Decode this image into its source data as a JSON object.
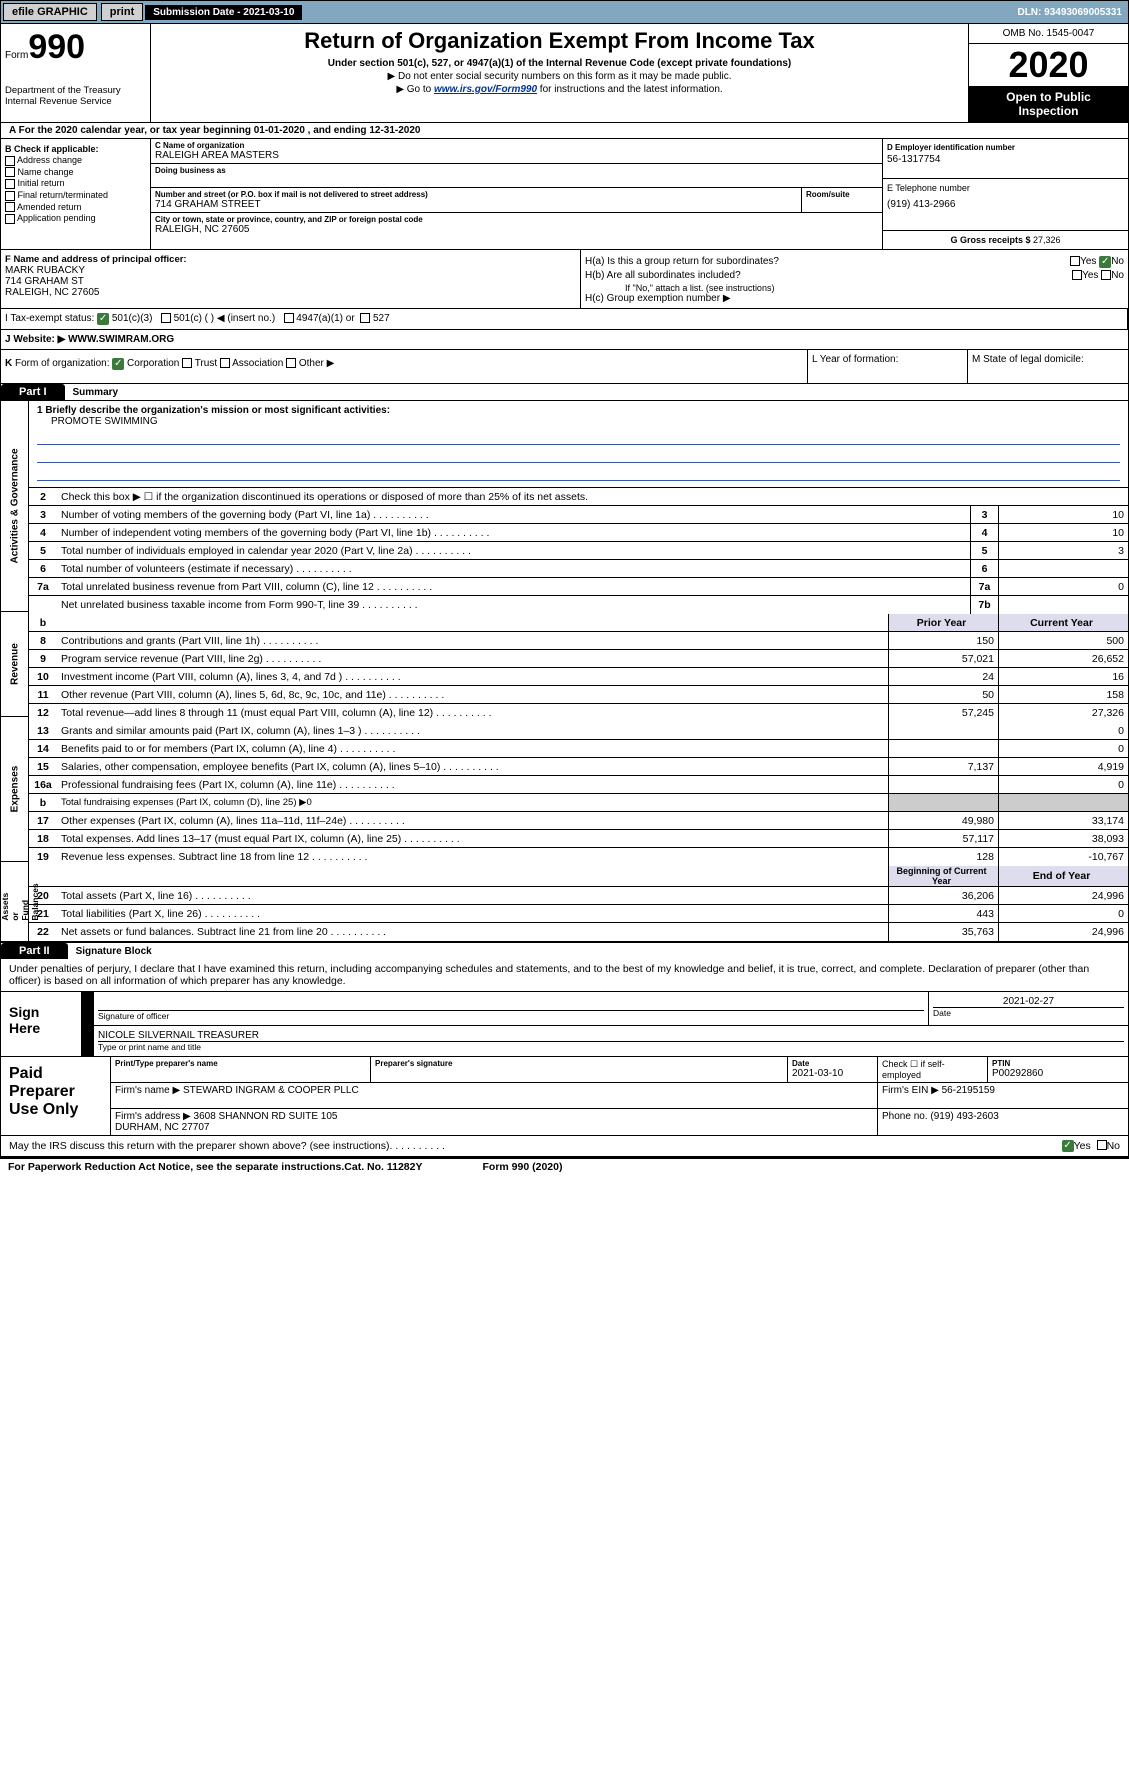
{
  "top": {
    "efile": "efile GRAPHIC",
    "print": "print",
    "subdate_lbl": "Submission Date - 2021-03-10",
    "dln": "DLN: 93493069005331"
  },
  "header": {
    "form": "Form",
    "num": "990",
    "dept": "Department of the Treasury\nInternal Revenue Service",
    "title": "Return of Organization Exempt From Income Tax",
    "sub": "Under section 501(c), 527, or 4947(a)(1) of the Internal Revenue Code (except private foundations)",
    "l1": "▶ Do not enter social security numbers on this form as it may be made public.",
    "l2a": "▶ Go to ",
    "l2link": "www.irs.gov/Form990",
    "l2b": " for instructions and the latest information.",
    "omb": "OMB No. 1545-0047",
    "year": "2020",
    "open": "Open to Public\nInspection"
  },
  "rowA": "A For the 2020 calendar year, or tax year beginning 01-01-2020    , and ending 12-31-2020",
  "colB": {
    "hdr": "B Check if applicable:",
    "items": [
      "Address change",
      "Name change",
      "Initial return",
      "Final return/terminated",
      "Amended return",
      "Application pending"
    ]
  },
  "colC": {
    "name_lbl": "C Name of organization",
    "name": "RALEIGH AREA MASTERS",
    "dba_lbl": "Doing business as",
    "addr_lbl": "Number and street (or P.O. box if mail is not delivered to street address)",
    "addr": "714 GRAHAM STREET",
    "room_lbl": "Room/suite",
    "city_lbl": "City or town, state or province, country, and ZIP or foreign postal code",
    "city": "RALEIGH, NC  27605"
  },
  "colD": {
    "lbl": "D Employer identification number",
    "val": "56-1317754"
  },
  "colE": {
    "lbl": "E Telephone number",
    "val": "(919) 413-2966"
  },
  "colG": {
    "lbl": "G Gross receipts $ ",
    "val": "27,326"
  },
  "colF": {
    "lbl": "F  Name and address of principal officer:",
    "l1": "MARK RUBACKY",
    "l2": "714 GRAHAM ST",
    "l3": "RALEIGH, NC  27605"
  },
  "colH": {
    "ha": "H(a)  Is this a group return for subordinates?",
    "hb": "H(b)  Are all subordinates included?",
    "hbnote": "If \"No,\" attach a list. (see instructions)",
    "hc": "H(c)  Group exemption number ▶",
    "yes": "Yes",
    "no": "No"
  },
  "rowI": {
    "lbl": "I    Tax-exempt status:",
    "o1": "501(c)(3)",
    "o2": "501(c) (  ) ◀ (insert no.)",
    "o3": "4947(a)(1) or",
    "o4": "527"
  },
  "rowJ": {
    "lbl": "J   Website: ▶  ",
    "val": "WWW.SWIMRAM.ORG"
  },
  "rowK": "K Form of organization:     Corporation    Trust    Association    Other ▶",
  "rowL": "L Year of formation:",
  "rowM": "M State of legal domicile:",
  "part1": {
    "hdr": "Part I",
    "title": "Summary",
    "side": [
      "Activities & Governance",
      "Revenue",
      "Expenses",
      "Net Assets or\nFund Balances"
    ],
    "mission_lbl": "1  Briefly describe the organization's mission or most significant activities:",
    "mission": "PROMOTE SWIMMING",
    "gov_lines": [
      {
        "n": "2",
        "t": "Check this box ▶ ☐  if the organization discontinued its operations or disposed of more than 25% of its net assets."
      },
      {
        "n": "3",
        "t": "Number of voting members of the governing body (Part VI, line 1a)",
        "box": "3",
        "v": "10"
      },
      {
        "n": "4",
        "t": "Number of independent voting members of the governing body (Part VI, line 1b)",
        "box": "4",
        "v": "10"
      },
      {
        "n": "5",
        "t": "Total number of individuals employed in calendar year 2020 (Part V, line 2a)",
        "box": "5",
        "v": "3"
      },
      {
        "n": "6",
        "t": "Total number of volunteers (estimate if necessary)",
        "box": "6",
        "v": ""
      },
      {
        "n": "7a",
        "t": "Total unrelated business revenue from Part VIII, column (C), line 12",
        "box": "7a",
        "v": "0"
      },
      {
        "n": "",
        "t": "Net unrelated business taxable income from Form 990-T, line 39",
        "box": "7b",
        "v": ""
      }
    ],
    "col_hdr": {
      "b": "b",
      "py": "Prior Year",
      "cy": "Current Year"
    },
    "rev_lines": [
      {
        "n": "8",
        "t": "Contributions and grants (Part VIII, line 1h)",
        "py": "150",
        "cy": "500"
      },
      {
        "n": "9",
        "t": "Program service revenue (Part VIII, line 2g)",
        "py": "57,021",
        "cy": "26,652"
      },
      {
        "n": "10",
        "t": "Investment income (Part VIII, column (A), lines 3, 4, and 7d )",
        "py": "24",
        "cy": "16"
      },
      {
        "n": "11",
        "t": "Other revenue (Part VIII, column (A), lines 5, 6d, 8c, 9c, 10c, and 11e)",
        "py": "50",
        "cy": "158"
      },
      {
        "n": "12",
        "t": "Total revenue—add lines 8 through 11 (must equal Part VIII, column (A), line 12)",
        "py": "57,245",
        "cy": "27,326"
      }
    ],
    "exp_lines": [
      {
        "n": "13",
        "t": "Grants and similar amounts paid (Part IX, column (A), lines 1–3 )",
        "py": "",
        "cy": "0"
      },
      {
        "n": "14",
        "t": "Benefits paid to or for members (Part IX, column (A), line 4)",
        "py": "",
        "cy": "0"
      },
      {
        "n": "15",
        "t": "Salaries, other compensation, employee benefits (Part IX, column (A), lines 5–10)",
        "py": "7,137",
        "cy": "4,919"
      },
      {
        "n": "16a",
        "t": "Professional fundraising fees (Part IX, column (A), line 11e)",
        "py": "",
        "cy": "0"
      },
      {
        "n": "b",
        "t": "Total fundraising expenses (Part IX, column (D), line 25) ▶0",
        "py": "shade",
        "cy": "shade"
      },
      {
        "n": "17",
        "t": "Other expenses (Part IX, column (A), lines 11a–11d, 11f–24e)",
        "py": "49,980",
        "cy": "33,174"
      },
      {
        "n": "18",
        "t": "Total expenses. Add lines 13–17 (must equal Part IX, column (A), line 25)",
        "py": "57,117",
        "cy": "38,093"
      },
      {
        "n": "19",
        "t": "Revenue less expenses. Subtract line 18 from line 12",
        "py": "128",
        "cy": "-10,767"
      }
    ],
    "na_hdr": {
      "py": "Beginning of Current Year",
      "cy": "End of Year"
    },
    "na_lines": [
      {
        "n": "20",
        "t": "Total assets (Part X, line 16)",
        "py": "36,206",
        "cy": "24,996"
      },
      {
        "n": "21",
        "t": "Total liabilities (Part X, line 26)",
        "py": "443",
        "cy": "0"
      },
      {
        "n": "22",
        "t": "Net assets or fund balances. Subtract line 21 from line 20",
        "py": "35,763",
        "cy": "24,996"
      }
    ]
  },
  "part2": {
    "hdr": "Part II",
    "title": "Signature Block",
    "decl": "Under penalties of perjury, I declare that I have examined this return, including accompanying schedules and statements, and to the best of my knowledge and belief, it is true, correct, and complete. Declaration of preparer (other than officer) is based on all information of which preparer has any knowledge.",
    "sign_here": "Sign\nHere",
    "sig_of": "Signature of officer",
    "date": "2021-02-27",
    "date_lbl": "Date",
    "name": "NICOLE SILVERNAIL  TREASURER",
    "name_lbl": "Type or print name and title",
    "paid": "Paid\nPreparer\nUse Only",
    "pp_name_lbl": "Print/Type preparer's name",
    "pp_sig_lbl": "Preparer's signature",
    "pp_date_lbl": "Date",
    "pp_date": "2021-03-10",
    "pp_check": "Check ☐ if self-employed",
    "ptin_lbl": "PTIN",
    "ptin": "P00292860",
    "firm_lbl": "Firm's name     ▶",
    "firm": "STEWARD INGRAM & COOPER PLLC",
    "ein_lbl": "Firm's EIN ▶",
    "ein": "56-2195159",
    "faddr_lbl": "Firm's address ▶",
    "faddr": "3608 SHANNON RD SUITE 105\nDURHAM, NC  27707",
    "phone_lbl": "Phone no.",
    "phone": "(919) 493-2603"
  },
  "bottom": {
    "q": "May the IRS discuss this return with the preparer shown above? (see instructions)",
    "yes": "Yes",
    "no": "No"
  },
  "footer": {
    "l": "For Paperwork Reduction Act Notice, see the separate instructions.",
    "m": "Cat. No. 11282Y",
    "r": "Form 990 (2020)"
  },
  "colors": {
    "topbar": "#82a8c0",
    "link": "#003399",
    "check_green": "#3a7a3a"
  }
}
